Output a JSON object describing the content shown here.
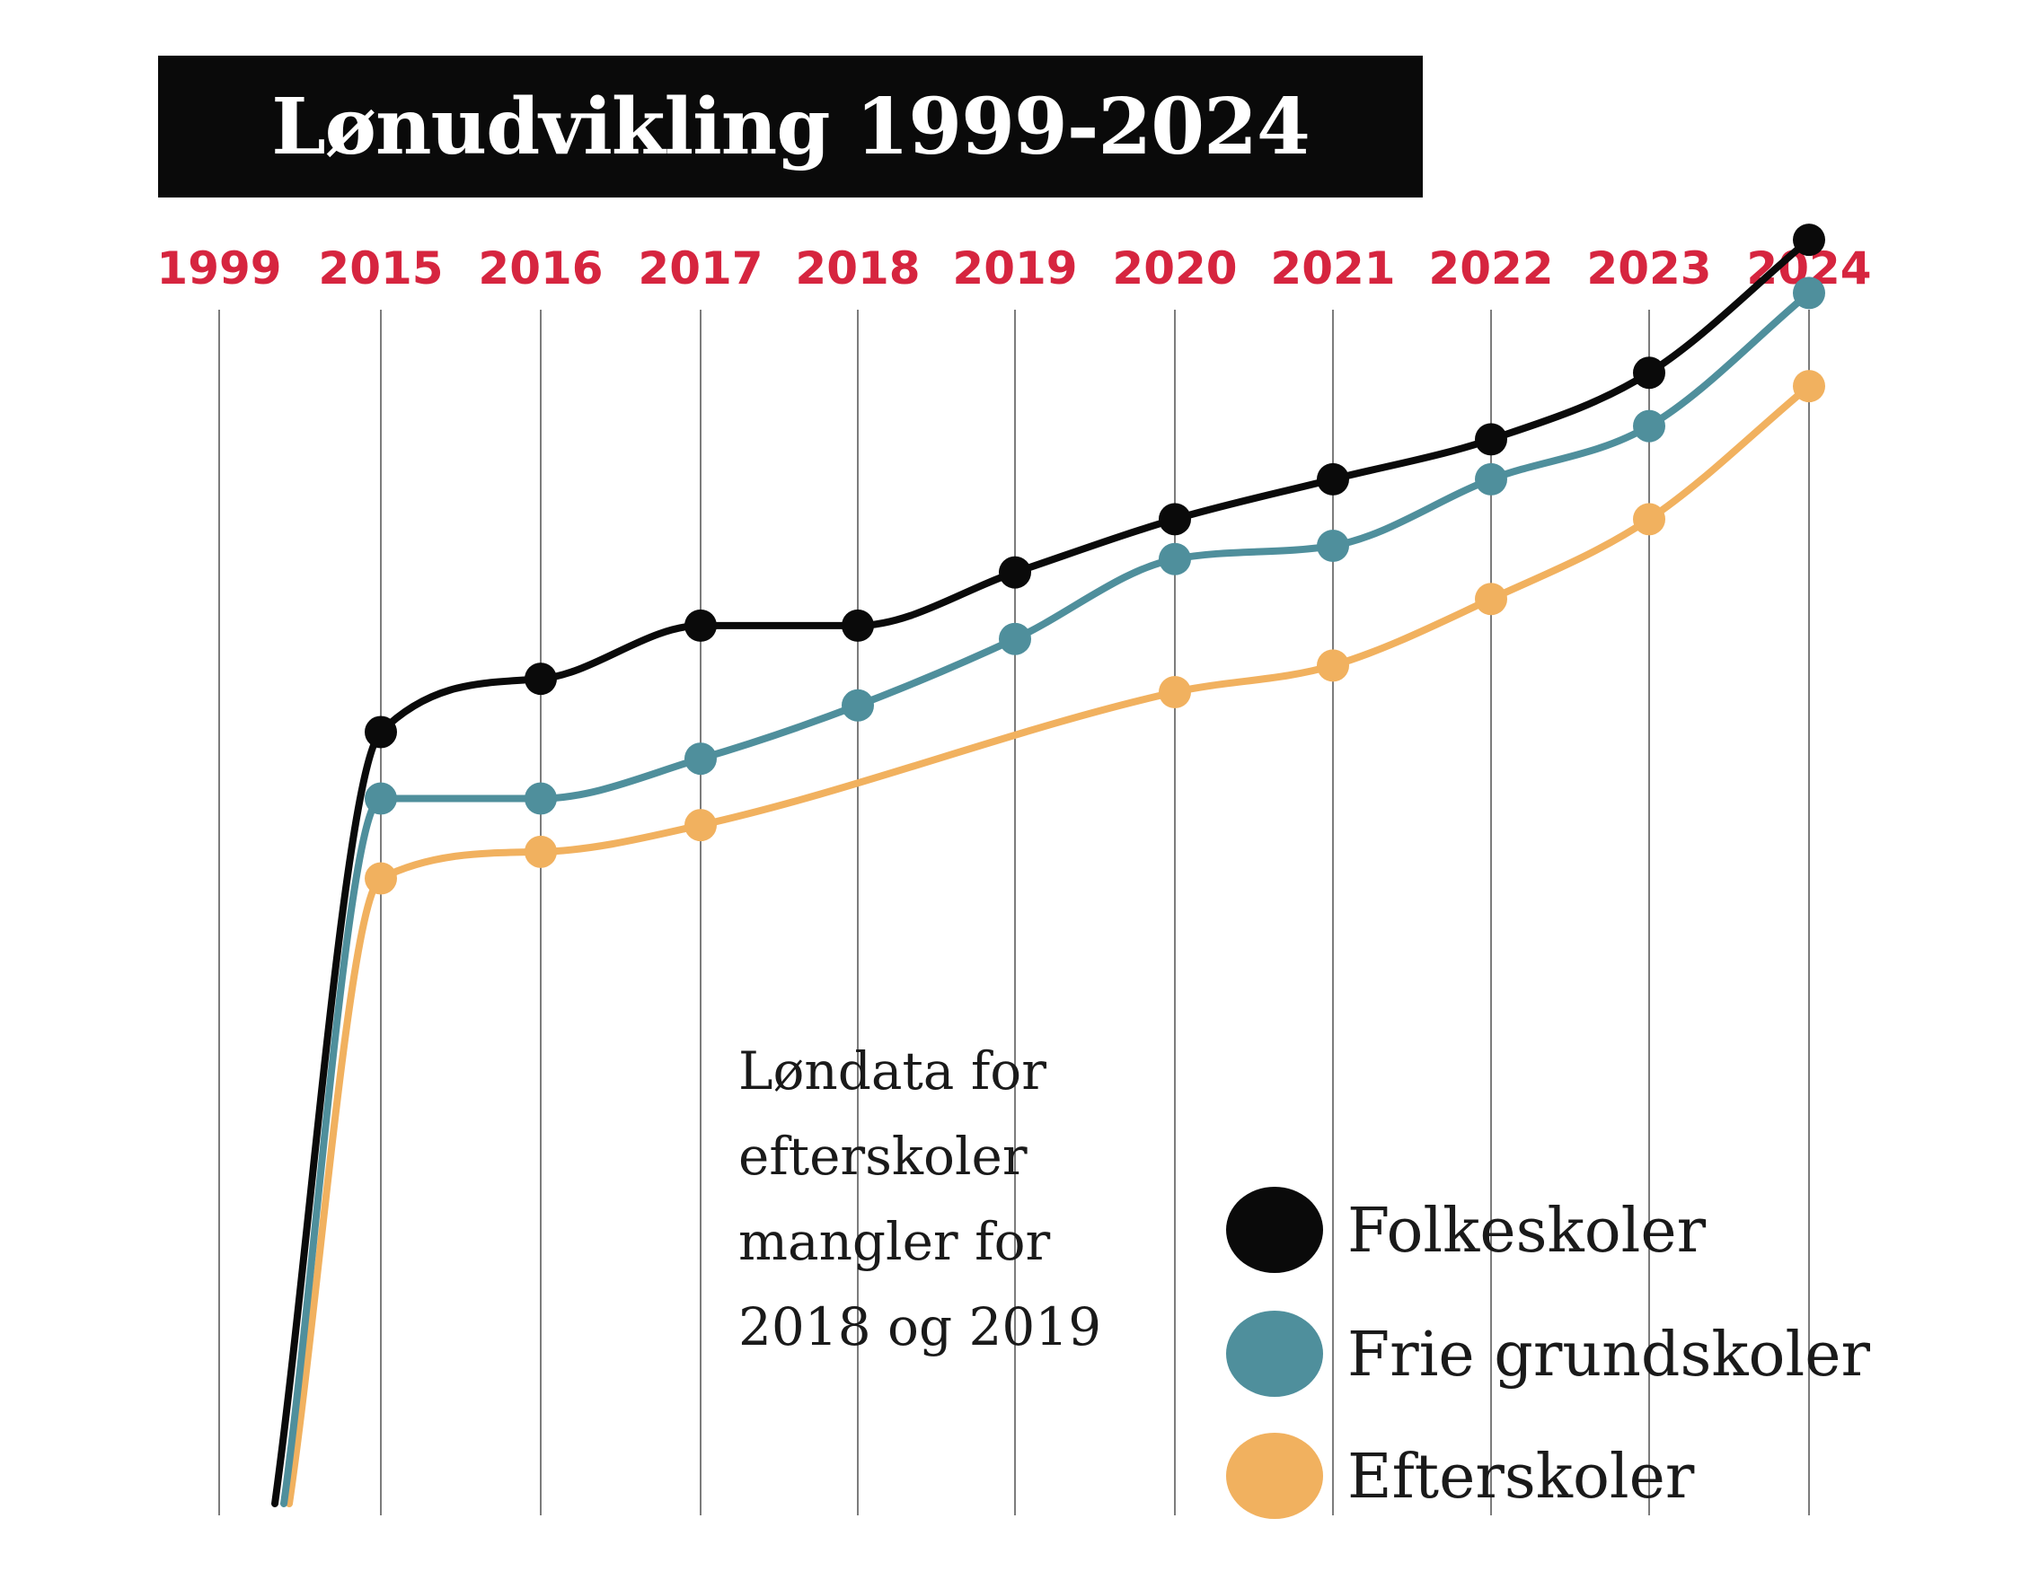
{
  "chart_data": {
    "type": "line",
    "title": "Lønudvikling 1999-2024",
    "categories": [
      "1999",
      "2015",
      "2016",
      "2017",
      "2018",
      "2019",
      "2020",
      "2021",
      "2022",
      "2023",
      "2024"
    ],
    "series": [
      {
        "name": "Folkeskoler",
        "color": "#0a0a0a",
        "values": [
          null,
          58,
          62,
          66,
          66,
          70,
          74,
          77,
          80,
          85,
          95
        ]
      },
      {
        "name": "Frie grundskoler",
        "color": "#4f8f9c",
        "values": [
          null,
          53,
          53,
          56,
          60,
          65,
          71,
          72,
          77,
          81,
          91
        ]
      },
      {
        "name": "Efterskoler",
        "color": "#f1b15f",
        "values": [
          null,
          47,
          49,
          51,
          null,
          null,
          61,
          63,
          68,
          74,
          84
        ]
      }
    ],
    "start_point": {
      "label": "1999",
      "values": [
        0,
        0,
        0
      ]
    },
    "annotation": [
      "Løndata for",
      "efterskoler",
      "mangler for",
      "2018 og 2019"
    ],
    "year_label_color": "#d6253f",
    "grid": "vertical"
  }
}
